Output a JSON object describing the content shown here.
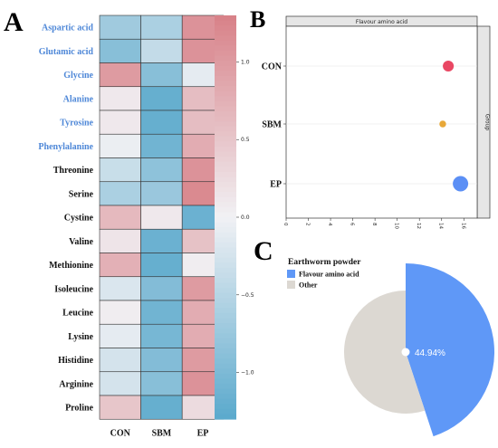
{
  "panels": {
    "a": "A",
    "b": "B",
    "c": "C"
  },
  "chart_data": [
    {
      "type": "heatmap",
      "columns": [
        "CON",
        "SBM",
        "EP"
      ],
      "rows": [
        "Aspartic acid",
        "Glutamic acid",
        "Glycine",
        "Alanine",
        "Tyrosine",
        "Phenylalanine",
        "Threonine",
        "Serine",
        "Cystine",
        "Valine",
        "Methionine",
        "Isoleucine",
        "Leucine",
        "Lysine",
        "Histidine",
        "Arginine",
        "Proline"
      ],
      "highlighted_rows": [
        "Aspartic acid",
        "Glutamic acid",
        "Glycine",
        "Alanine",
        "Tyrosine",
        "Phenylalanine"
      ],
      "highlight_color": "#4f88d8",
      "values": [
        [
          -0.7,
          -0.6,
          1.1
        ],
        [
          -0.9,
          -0.4,
          1.1
        ],
        [
          1.0,
          -0.9,
          -0.1
        ],
        [
          0.1,
          -1.2,
          0.6
        ],
        [
          0.1,
          -1.2,
          0.6
        ],
        [
          -0.05,
          -1.1,
          0.8
        ],
        [
          -0.35,
          -0.85,
          1.1
        ],
        [
          -0.6,
          -0.75,
          1.2
        ],
        [
          0.65,
          0.1,
          -1.15
        ],
        [
          0.15,
          -1.15,
          0.55
        ],
        [
          0.75,
          -1.2,
          0.05
        ],
        [
          -0.2,
          -0.95,
          1.0
        ],
        [
          0.05,
          -1.1,
          0.8
        ],
        [
          -0.1,
          -1.05,
          0.8
        ],
        [
          -0.25,
          -0.95,
          1.0
        ],
        [
          -0.25,
          -0.9,
          1.1
        ],
        [
          0.5,
          -1.2,
          0.25
        ]
      ],
      "colorbar": {
        "ticks": [
          1.0,
          0.5,
          0.0,
          -0.5,
          -1.0
        ],
        "tick_labels": [
          "1.0",
          "0.5",
          "0.0",
          "−0.5",
          "−1.0"
        ],
        "range": [
          -1.3,
          1.3
        ]
      },
      "colors": {
        "low": "#5aa9cc",
        "mid": "#f1f1f4",
        "high": "#d88188"
      }
    },
    {
      "type": "scatter",
      "facet_title": "Flavour amino acid",
      "side_strip": "Group",
      "categories": [
        "CON",
        "SBM",
        "EP"
      ],
      "x": [
        14.6,
        14.1,
        15.7
      ],
      "size_weight": [
        0.42,
        0.1,
        1.0
      ],
      "point_colors": [
        "#e94763",
        "#e8a838",
        "#5b8ff5"
      ],
      "xticks": [
        0,
        2,
        4,
        6,
        8,
        10,
        12,
        14,
        16
      ],
      "xlim": [
        0,
        17.2
      ],
      "grid": true
    },
    {
      "type": "pie",
      "title": "Earthworm powder",
      "labels": [
        "Flavour amino acid",
        "Other"
      ],
      "values": [
        44.94,
        55.06
      ],
      "colors": [
        "#5f98f7",
        "#dcd8d2"
      ],
      "center_label": "44.94%"
    }
  ]
}
